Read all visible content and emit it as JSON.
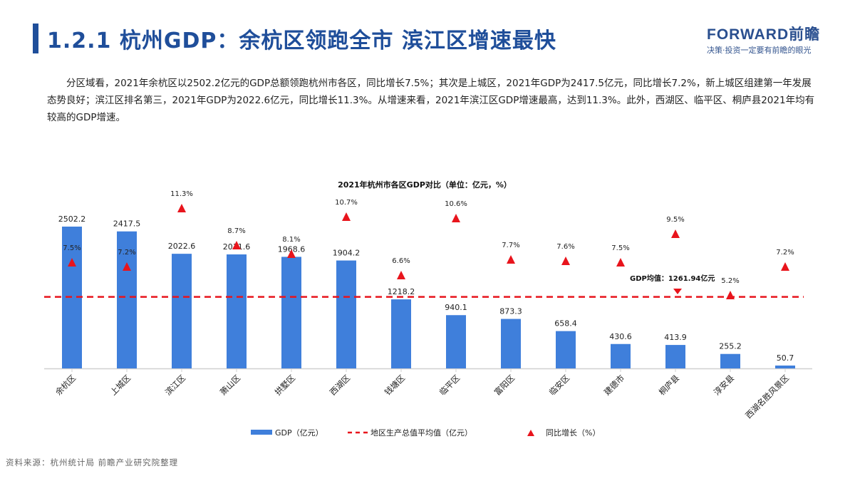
{
  "header": {
    "title": "1.2.1 杭州GDP：余杭区领跑全市 滨江区增速最快",
    "logo_main": "FORWARD前瞻",
    "logo_sub": "决策·投资一定要有前瞻的眼光"
  },
  "paragraph": "分区域看，2021年余杭区以2502.2亿元的GDP总额领跑杭州市各区，同比增长7.5%；其次是上城区，2021年GDP为2417.5亿元，同比增长7.2%，新上城区组建第一年发展态势良好；滨江区排名第三，2021年GDP为2022.6亿元，同比增长11.3%。从增速来看，2021年滨江区GDP增速最高，达到11.3%。此外，西湖区、临平区、桐庐县2021年均有较高的GDP增速。",
  "source": "资料来源：杭州统计局 前瞻产业研究院整理",
  "colors": {
    "title": "#1f4e9a",
    "bar": "#3f7fdb",
    "triangle": "#e8141c",
    "mean_line": "#e8141c"
  },
  "chart_data": {
    "type": "bar",
    "title": "2021年杭州市各区GDP对比（单位：亿元，%）",
    "categories": [
      "余杭区",
      "上城区",
      "滨江区",
      "萧山区",
      "拱墅区",
      "西湖区",
      "钱塘区",
      "临平区",
      "富阳区",
      "临安区",
      "建德市",
      "桐庐县",
      "淳安县",
      "西湖名胜风景区"
    ],
    "series": [
      {
        "name": "GDP（亿元）",
        "type": "bar",
        "values": [
          2502.2,
          2417.5,
          2022.6,
          2011.6,
          1968.6,
          1904.2,
          1218.2,
          940.1,
          873.3,
          658.4,
          430.6,
          413.9,
          255.2,
          50.7
        ]
      },
      {
        "name": "同比增长（%）",
        "type": "scatter",
        "marker": "triangle",
        "values": [
          7.5,
          7.2,
          11.3,
          8.7,
          8.1,
          10.7,
          6.6,
          10.6,
          7.7,
          7.6,
          7.5,
          9.5,
          5.2,
          7.2
        ]
      },
      {
        "name": "地区生产总值平均值（亿元）",
        "type": "line",
        "style": "dashed",
        "value": 1261.94
      }
    ],
    "annotation": "GDP均值：1261.94亿元",
    "legend": [
      "GDP（亿元）",
      "地区生产总值平均值（亿元）",
      "同比增长（%）"
    ],
    "legend_position": "bottom",
    "xlabel": "",
    "ylabel": "",
    "grid": false
  }
}
